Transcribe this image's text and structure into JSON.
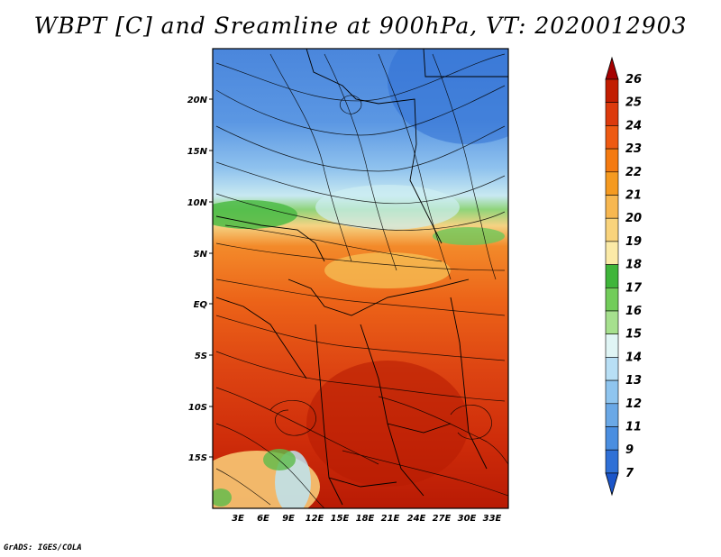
{
  "title": "WBPT [C] and Sreamline at 900hPa, VT: 2020012903",
  "footer": "GrADS: IGES/COLA",
  "map": {
    "variable": "WBPT",
    "unit": "C",
    "level": "900hPa",
    "valid_time": "2020012903",
    "lat_ticks": [
      "20N",
      "15N",
      "10N",
      "5N",
      "EQ",
      "5S",
      "10S",
      "15S"
    ],
    "lon_ticks": [
      "3E",
      "6E",
      "9E",
      "12E",
      "15E",
      "18E",
      "21E",
      "24E",
      "27E",
      "30E",
      "33E"
    ]
  },
  "colorbar": {
    "labels": [
      "26",
      "25",
      "24",
      "23",
      "22",
      "21",
      "20",
      "19",
      "18",
      "17",
      "16",
      "15",
      "14",
      "13",
      "12",
      "11",
      "9",
      "7"
    ],
    "colors": [
      "#a50000",
      "#c21d00",
      "#dc3a0c",
      "#ee5a12",
      "#f47a10",
      "#f59a20",
      "#f7b750",
      "#f9d37c",
      "#fbeaa7",
      "#3fb53a",
      "#72cc5a",
      "#a6e08e",
      "#e0f5f5",
      "#b8dff5",
      "#8fc5ef",
      "#6aa8e6",
      "#4a8ee0",
      "#2f70d6",
      "#1b55c9"
    ]
  }
}
